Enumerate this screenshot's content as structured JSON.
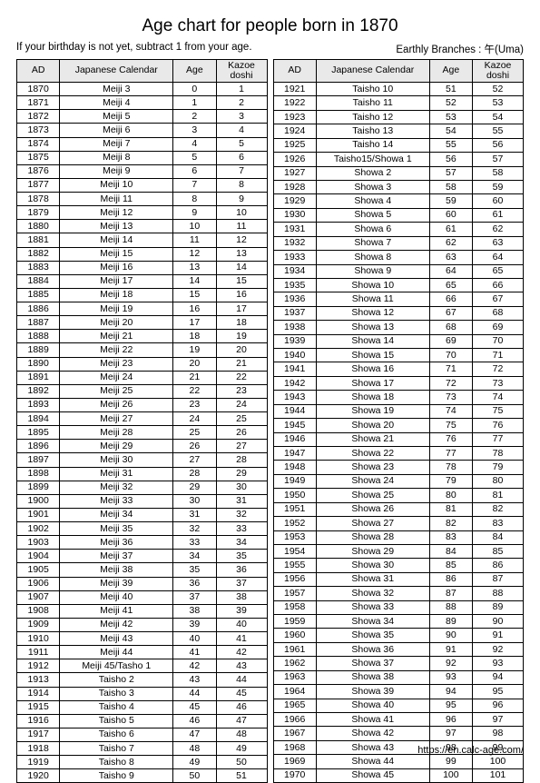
{
  "title": "Age chart for people born in 1870",
  "note": "If your birthday is not yet, subtract 1 from your age.",
  "branches": "Earthly Branches : 午(Uma)",
  "footer": "https://en.calc-age.com/",
  "headers": {
    "ad": "AD",
    "jp": "Japanese Calendar",
    "age": "Age",
    "kazoe_l1": "Kazoe",
    "kazoe_l2": "doshi"
  },
  "left": [
    [
      "1870",
      "Meiji 3",
      "0",
      "1"
    ],
    [
      "1871",
      "Meiji 4",
      "1",
      "2"
    ],
    [
      "1872",
      "Meiji 5",
      "2",
      "3"
    ],
    [
      "1873",
      "Meiji 6",
      "3",
      "4"
    ],
    [
      "1874",
      "Meiji 7",
      "4",
      "5"
    ],
    [
      "1875",
      "Meiji 8",
      "5",
      "6"
    ],
    [
      "1876",
      "Meiji 9",
      "6",
      "7"
    ],
    [
      "1877",
      "Meiji 10",
      "7",
      "8"
    ],
    [
      "1878",
      "Meiji 11",
      "8",
      "9"
    ],
    [
      "1879",
      "Meiji 12",
      "9",
      "10"
    ],
    [
      "1880",
      "Meiji 13",
      "10",
      "11"
    ],
    [
      "1881",
      "Meiji 14",
      "11",
      "12"
    ],
    [
      "1882",
      "Meiji 15",
      "12",
      "13"
    ],
    [
      "1883",
      "Meiji 16",
      "13",
      "14"
    ],
    [
      "1884",
      "Meiji 17",
      "14",
      "15"
    ],
    [
      "1885",
      "Meiji 18",
      "15",
      "16"
    ],
    [
      "1886",
      "Meiji 19",
      "16",
      "17"
    ],
    [
      "1887",
      "Meiji 20",
      "17",
      "18"
    ],
    [
      "1888",
      "Meiji 21",
      "18",
      "19"
    ],
    [
      "1889",
      "Meiji 22",
      "19",
      "20"
    ],
    [
      "1890",
      "Meiji 23",
      "20",
      "21"
    ],
    [
      "1891",
      "Meiji 24",
      "21",
      "22"
    ],
    [
      "1892",
      "Meiji 25",
      "22",
      "23"
    ],
    [
      "1893",
      "Meiji 26",
      "23",
      "24"
    ],
    [
      "1894",
      "Meiji 27",
      "24",
      "25"
    ],
    [
      "1895",
      "Meiji 28",
      "25",
      "26"
    ],
    [
      "1896",
      "Meiji 29",
      "26",
      "27"
    ],
    [
      "1897",
      "Meiji 30",
      "27",
      "28"
    ],
    [
      "1898",
      "Meiji 31",
      "28",
      "29"
    ],
    [
      "1899",
      "Meiji 32",
      "29",
      "30"
    ],
    [
      "1900",
      "Meiji 33",
      "30",
      "31"
    ],
    [
      "1901",
      "Meiji 34",
      "31",
      "32"
    ],
    [
      "1902",
      "Meiji 35",
      "32",
      "33"
    ],
    [
      "1903",
      "Meiji 36",
      "33",
      "34"
    ],
    [
      "1904",
      "Meiji 37",
      "34",
      "35"
    ],
    [
      "1905",
      "Meiji 38",
      "35",
      "36"
    ],
    [
      "1906",
      "Meiji 39",
      "36",
      "37"
    ],
    [
      "1907",
      "Meiji 40",
      "37",
      "38"
    ],
    [
      "1908",
      "Meiji 41",
      "38",
      "39"
    ],
    [
      "1909",
      "Meiji 42",
      "39",
      "40"
    ],
    [
      "1910",
      "Meiji 43",
      "40",
      "41"
    ],
    [
      "1911",
      "Meiji 44",
      "41",
      "42"
    ],
    [
      "1912",
      "Meiji 45/Tasho 1",
      "42",
      "43"
    ],
    [
      "1913",
      "Taisho 2",
      "43",
      "44"
    ],
    [
      "1914",
      "Taisho 3",
      "44",
      "45"
    ],
    [
      "1915",
      "Taisho 4",
      "45",
      "46"
    ],
    [
      "1916",
      "Taisho 5",
      "46",
      "47"
    ],
    [
      "1917",
      "Taisho 6",
      "47",
      "48"
    ],
    [
      "1918",
      "Taisho 7",
      "48",
      "49"
    ],
    [
      "1919",
      "Taisho 8",
      "49",
      "50"
    ],
    [
      "1920",
      "Taisho 9",
      "50",
      "51"
    ]
  ],
  "right": [
    [
      "1921",
      "Taisho 10",
      "51",
      "52"
    ],
    [
      "1922",
      "Taisho 11",
      "52",
      "53"
    ],
    [
      "1923",
      "Taisho 12",
      "53",
      "54"
    ],
    [
      "1924",
      "Taisho 13",
      "54",
      "55"
    ],
    [
      "1925",
      "Taisho 14",
      "55",
      "56"
    ],
    [
      "1926",
      "Taisho15/Showa 1",
      "56",
      "57"
    ],
    [
      "1927",
      "Showa 2",
      "57",
      "58"
    ],
    [
      "1928",
      "Showa 3",
      "58",
      "59"
    ],
    [
      "1929",
      "Showa 4",
      "59",
      "60"
    ],
    [
      "1930",
      "Showa 5",
      "60",
      "61"
    ],
    [
      "1931",
      "Showa 6",
      "61",
      "62"
    ],
    [
      "1932",
      "Showa 7",
      "62",
      "63"
    ],
    [
      "1933",
      "Showa 8",
      "63",
      "64"
    ],
    [
      "1934",
      "Showa 9",
      "64",
      "65"
    ],
    [
      "1935",
      "Showa 10",
      "65",
      "66"
    ],
    [
      "1936",
      "Showa 11",
      "66",
      "67"
    ],
    [
      "1937",
      "Showa 12",
      "67",
      "68"
    ],
    [
      "1938",
      "Showa 13",
      "68",
      "69"
    ],
    [
      "1939",
      "Showa 14",
      "69",
      "70"
    ],
    [
      "1940",
      "Showa 15",
      "70",
      "71"
    ],
    [
      "1941",
      "Showa 16",
      "71",
      "72"
    ],
    [
      "1942",
      "Showa 17",
      "72",
      "73"
    ],
    [
      "1943",
      "Showa 18",
      "73",
      "74"
    ],
    [
      "1944",
      "Showa 19",
      "74",
      "75"
    ],
    [
      "1945",
      "Showa 20",
      "75",
      "76"
    ],
    [
      "1946",
      "Showa 21",
      "76",
      "77"
    ],
    [
      "1947",
      "Showa 22",
      "77",
      "78"
    ],
    [
      "1948",
      "Showa 23",
      "78",
      "79"
    ],
    [
      "1949",
      "Showa 24",
      "79",
      "80"
    ],
    [
      "1950",
      "Showa 25",
      "80",
      "81"
    ],
    [
      "1951",
      "Showa 26",
      "81",
      "82"
    ],
    [
      "1952",
      "Showa 27",
      "82",
      "83"
    ],
    [
      "1953",
      "Showa 28",
      "83",
      "84"
    ],
    [
      "1954",
      "Showa 29",
      "84",
      "85"
    ],
    [
      "1955",
      "Showa 30",
      "85",
      "86"
    ],
    [
      "1956",
      "Showa 31",
      "86",
      "87"
    ],
    [
      "1957",
      "Showa 32",
      "87",
      "88"
    ],
    [
      "1958",
      "Showa 33",
      "88",
      "89"
    ],
    [
      "1959",
      "Showa 34",
      "89",
      "90"
    ],
    [
      "1960",
      "Showa 35",
      "90",
      "91"
    ],
    [
      "1961",
      "Showa 36",
      "91",
      "92"
    ],
    [
      "1962",
      "Showa 37",
      "92",
      "93"
    ],
    [
      "1963",
      "Showa 38",
      "93",
      "94"
    ],
    [
      "1964",
      "Showa 39",
      "94",
      "95"
    ],
    [
      "1965",
      "Showa 40",
      "95",
      "96"
    ],
    [
      "1966",
      "Showa 41",
      "96",
      "97"
    ],
    [
      "1967",
      "Showa 42",
      "97",
      "98"
    ],
    [
      "1968",
      "Showa 43",
      "98",
      "99"
    ],
    [
      "1969",
      "Showa 44",
      "99",
      "100"
    ],
    [
      "1970",
      "Showa 45",
      "100",
      "101"
    ]
  ]
}
